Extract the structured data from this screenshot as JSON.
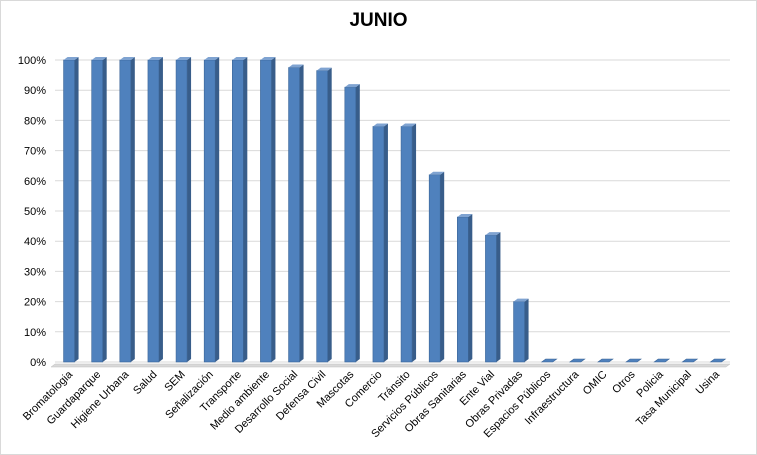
{
  "chart_data": {
    "type": "bar",
    "title": "JUNIO",
    "xlabel": "",
    "ylabel": "",
    "ylim": [
      0,
      100
    ],
    "yticks": [
      "0%",
      "10%",
      "20%",
      "30%",
      "40%",
      "50%",
      "60%",
      "70%",
      "80%",
      "90%",
      "100%"
    ],
    "grid": true,
    "legend": "none",
    "bar_color": "#4F81BD",
    "categories": [
      "Bromatologia",
      "Guardaparque",
      "Higiene Urbana",
      "Salud",
      "SEM",
      "Señalización",
      "Transporte",
      "Medio ambiente",
      "Desarrollo Social",
      "Defensa Civil",
      "Mascotas",
      "Comercio",
      "Tránsito",
      "Servicios Públicos",
      "Obras Sanitarias",
      "Ente Vial",
      "Obras Privadas",
      "Espacios Públicos",
      "Infraestructura",
      "OMIC",
      "Otros",
      "Policia",
      "Tasa Municipal",
      "Usina"
    ],
    "values": [
      100,
      100,
      100,
      100,
      100,
      100,
      100,
      100,
      97.5,
      96.5,
      91,
      78,
      78,
      62,
      48,
      42,
      20,
      0,
      0,
      0,
      0,
      0,
      0,
      0
    ]
  }
}
